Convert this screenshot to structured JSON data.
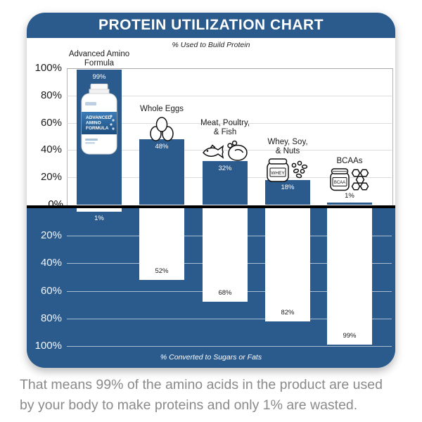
{
  "header": {
    "title": "PROTEIN UTILIZATION CHART"
  },
  "colors": {
    "brand_blue": "#2b5a8c",
    "bar_blue": "#2b5a8c",
    "white_bar": "#ffffff",
    "divider_black": "#000000",
    "caption_gray": "#8a8a8a"
  },
  "chart_data": {
    "type": "bar",
    "title": "PROTEIN UTILIZATION CHART",
    "top_axis_label": "% Used to Build Protein",
    "bottom_axis_label": "% Converted to Sugars or Fats",
    "zero_label": "0%",
    "yticks_top": [
      "100%",
      "80%",
      "60%",
      "40%",
      "20%"
    ],
    "yticks_bottom": [
      "20%",
      "40%",
      "60%",
      "80%",
      "100%"
    ],
    "ylim_top": [
      0,
      100
    ],
    "ylim_bottom": [
      0,
      100
    ],
    "grid": true,
    "categories": [
      {
        "label": "Advanced Amino\nFormula",
        "icon": "product-bottle-icon"
      },
      {
        "label": "Whole Eggs",
        "icon": "eggs-icon"
      },
      {
        "label": "Meat, Poultry,\n& Fish",
        "icon": "fish-poultry-icon"
      },
      {
        "label": "Whey, Soy,\n& Nuts",
        "icon": "whey-soy-nuts-icon"
      },
      {
        "label": "BCAAs",
        "icon": "bcaa-jar-icon"
      }
    ],
    "series": [
      {
        "name": "% Used to Build Protein",
        "values": [
          99,
          48,
          32,
          18,
          1
        ],
        "value_labels": [
          "99%",
          "48%",
          "32%",
          "18%",
          "1%"
        ]
      },
      {
        "name": "% Converted to Sugars or Fats",
        "values": [
          1,
          52,
          68,
          82,
          99
        ],
        "value_labels": [
          "1%",
          "52%",
          "68%",
          "82%",
          "99%"
        ]
      }
    ],
    "icon_text": {
      "bottle_label_lines": [
        "ADVANCED",
        "AMINO",
        "FORMULA"
      ],
      "whey_jar_label": "WHEY",
      "bcaa_jar_label": "BCAA"
    }
  },
  "caption": {
    "line1": "That means 99% of the amino acids in the product are used",
    "line2": "by your body to make proteins and only 1% are wasted."
  }
}
